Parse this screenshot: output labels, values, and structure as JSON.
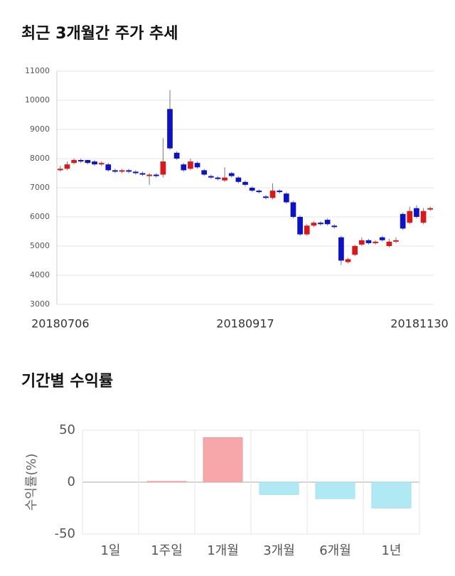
{
  "chart_data": [
    {
      "type": "candlestick",
      "title": "최근 3개월간 주가 추세",
      "categories": [
        "20180706",
        null,
        null,
        null,
        null,
        null,
        null,
        null,
        null,
        null,
        null,
        null,
        null,
        null,
        null,
        null,
        null,
        null,
        null,
        null,
        null,
        null,
        null,
        null,
        null,
        null,
        null,
        "20180917",
        null,
        null,
        null,
        null,
        null,
        null,
        null,
        null,
        null,
        null,
        null,
        null,
        null,
        null,
        null,
        null,
        null,
        null,
        null,
        null,
        null,
        null,
        null,
        null,
        null,
        null,
        "20181130"
      ],
      "open": [
        7600,
        7650,
        7850,
        7950,
        7950,
        7900,
        7800,
        7800,
        7600,
        7550,
        7600,
        7550,
        7500,
        7400,
        7450,
        7450,
        9700,
        8200,
        7800,
        7650,
        7850,
        7600,
        7400,
        7350,
        7250,
        7500,
        7350,
        7200,
        7000,
        6900,
        6700,
        6650,
        6900,
        6800,
        6500,
        6000,
        5400,
        5700,
        5800,
        5900,
        5700,
        5300,
        4450,
        4700,
        5050,
        5200,
        5100,
        5300,
        5000,
        5150,
        6100,
        5800,
        6300,
        5800,
        6250
      ],
      "high": [
        7750,
        7900,
        8000,
        8000,
        7950,
        7950,
        7900,
        7850,
        7650,
        7650,
        7650,
        7600,
        7550,
        7500,
        7500,
        8700,
        10350,
        8250,
        7850,
        8000,
        7900,
        7650,
        7450,
        7400,
        7700,
        7550,
        7400,
        7250,
        7050,
        6950,
        6750,
        7150,
        6950,
        6850,
        6550,
        6050,
        5750,
        5850,
        5850,
        5950,
        5750,
        5350,
        4600,
        5050,
        5300,
        5250,
        5200,
        5350,
        5250,
        5300,
        6150,
        6350,
        6400,
        6300,
        6350
      ],
      "low": [
        7550,
        7600,
        7800,
        7850,
        7800,
        7750,
        7750,
        7550,
        7500,
        7500,
        7500,
        7450,
        7400,
        7100,
        7350,
        7350,
        8300,
        7950,
        7550,
        7600,
        7650,
        7400,
        7300,
        7250,
        7200,
        7350,
        7150,
        7050,
        6850,
        6800,
        6600,
        6600,
        6800,
        6450,
        5950,
        5350,
        5350,
        5650,
        5700,
        5700,
        5600,
        4350,
        4400,
        4650,
        5000,
        5050,
        5050,
        5150,
        4950,
        5100,
        5550,
        5750,
        5950,
        5750,
        6200
      ],
      "close": [
        7650,
        7800,
        7950,
        7900,
        7850,
        7800,
        7850,
        7600,
        7550,
        7600,
        7550,
        7500,
        7450,
        7450,
        7400,
        7900,
        8350,
        8000,
        7600,
        7900,
        7700,
        7450,
        7350,
        7300,
        7350,
        7400,
        7200,
        7100,
        6900,
        6850,
        6650,
        6900,
        6850,
        6500,
        6000,
        5400,
        5700,
        5800,
        5750,
        5750,
        5650,
        4500,
        4550,
        5000,
        5200,
        5100,
        5150,
        5200,
        5150,
        5200,
        5600,
        6200,
        6000,
        6200,
        6300
      ],
      "up_color": "#d7191c",
      "down_color": "#0d12c4",
      "ylim": [
        3000,
        11000
      ],
      "yticks": [
        3000,
        4000,
        5000,
        6000,
        7000,
        8000,
        9000,
        10000,
        11000
      ],
      "grid": true
    },
    {
      "type": "bar",
      "title": "기간별 수익률",
      "ylabel": "수익률(%)",
      "categories": [
        "1일",
        "1주일",
        "1개월",
        "3개월",
        "6개월",
        "1년"
      ],
      "values": [
        0,
        0.8,
        43,
        -12,
        -16,
        -25
      ],
      "pos_color": "#f7a7a9",
      "neg_color": "#afe9f3",
      "ylim": [
        -50,
        50
      ],
      "yticks": [
        -50,
        0,
        50
      ],
      "grid": true
    }
  ]
}
